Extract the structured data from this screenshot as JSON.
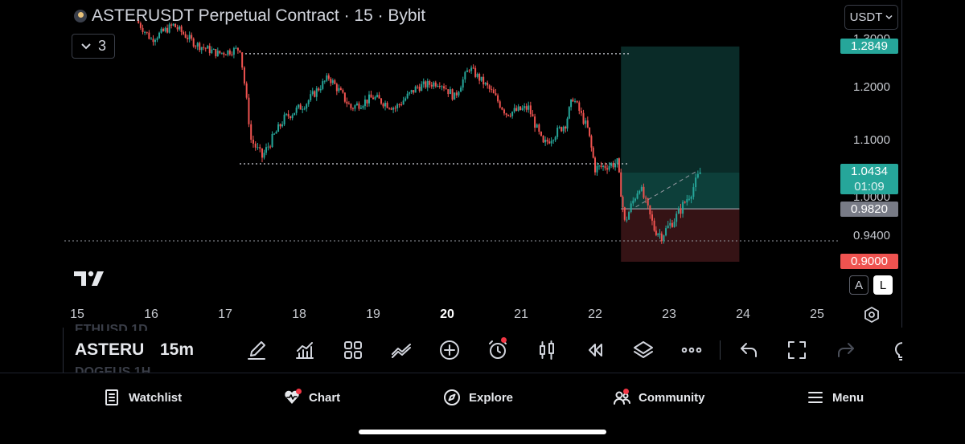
{
  "chart_header": {
    "title": "ASTERUSDT Perpetual Contract · 15 · Bybit",
    "indicator_count": "3",
    "currency": "USDT"
  },
  "colors": {
    "up": "#26a69a",
    "down": "#ef5350",
    "profit_zone": "#0e3a36",
    "loss_zone": "#3b1517",
    "target_tag": "#26a69a",
    "stop_tag": "#ef5350",
    "entry_tag": "#787b86"
  },
  "price_axis": {
    "labels": [
      "1.3000",
      "1.2000",
      "1.1000",
      "1.0000",
      "0.9400"
    ],
    "target_price": "1.2849",
    "current_price": "1.0434",
    "countdown": "01:09",
    "entry_price": "0.9820",
    "stop_price": "0.9000",
    "scale_buttons": [
      "A",
      "L"
    ]
  },
  "time_axis": {
    "labels": [
      "15",
      "16",
      "17",
      "18",
      "19",
      "20",
      "21",
      "22",
      "23",
      "24",
      "25"
    ],
    "bold_label": "20"
  },
  "chart_data": {
    "type": "candlestick",
    "symbol": "ASTERUSDT",
    "interval": "15",
    "exchange": "Bybit",
    "x_ticks": [
      "15",
      "16",
      "17",
      "18",
      "19",
      "20",
      "21",
      "22",
      "23",
      "24",
      "25"
    ],
    "y_ticks": [
      1.3,
      1.2,
      1.1,
      1.0,
      0.94
    ],
    "ylim": [
      0.88,
      1.33
    ],
    "approx_close_path": [
      {
        "x": 15.8,
        "y": 1.34
      },
      {
        "x": 16.0,
        "y": 1.3
      },
      {
        "x": 16.3,
        "y": 1.33
      },
      {
        "x": 16.6,
        "y": 1.29
      },
      {
        "x": 16.9,
        "y": 1.27
      },
      {
        "x": 17.2,
        "y": 1.28
      },
      {
        "x": 17.35,
        "y": 1.1
      },
      {
        "x": 17.5,
        "y": 1.07
      },
      {
        "x": 17.8,
        "y": 1.14
      },
      {
        "x": 18.1,
        "y": 1.17
      },
      {
        "x": 18.4,
        "y": 1.22
      },
      {
        "x": 18.7,
        "y": 1.16
      },
      {
        "x": 19.0,
        "y": 1.18
      },
      {
        "x": 19.3,
        "y": 1.16
      },
      {
        "x": 19.6,
        "y": 1.2
      },
      {
        "x": 19.9,
        "y": 1.21
      },
      {
        "x": 20.1,
        "y": 1.18
      },
      {
        "x": 20.3,
        "y": 1.24
      },
      {
        "x": 20.6,
        "y": 1.19
      },
      {
        "x": 20.8,
        "y": 1.15
      },
      {
        "x": 21.1,
        "y": 1.16
      },
      {
        "x": 21.3,
        "y": 1.09
      },
      {
        "x": 21.6,
        "y": 1.13
      },
      {
        "x": 21.7,
        "y": 1.18
      },
      {
        "x": 21.9,
        "y": 1.12
      },
      {
        "x": 22.0,
        "y": 1.05
      },
      {
        "x": 22.3,
        "y": 1.06
      },
      {
        "x": 22.4,
        "y": 0.96
      },
      {
        "x": 22.6,
        "y": 1.02
      },
      {
        "x": 22.8,
        "y": 0.95
      },
      {
        "x": 22.9,
        "y": 0.94
      },
      {
        "x": 23.1,
        "y": 0.97
      },
      {
        "x": 23.3,
        "y": 1.01
      },
      {
        "x": 23.42,
        "y": 1.0434
      }
    ],
    "horizontal_levels": [
      1.2849,
      1.0434,
      0.94
    ],
    "long_position": {
      "entry": 0.982,
      "target": 1.2849,
      "stop": 0.9,
      "x_start": 22.35,
      "x_end": 23.95
    }
  },
  "toolbar": {
    "symbol": "ASTERU",
    "interval": "15m",
    "ghost_above": "ETHUSD 1D",
    "ghost_below": "DOGEUS 1H",
    "icons": [
      "brush-icon",
      "indicators-icon",
      "templates-icon",
      "compare-icon",
      "add-icon",
      "alert-icon",
      "bar-style-icon",
      "replay-icon",
      "layers-icon",
      "more-icon",
      "undo-icon",
      "fullscreen-icon",
      "redo-icon",
      "lightbulb-icon"
    ]
  },
  "bottom_nav": {
    "watchlist": "Watchlist",
    "chart": "Chart",
    "explore": "Explore",
    "community": "Community",
    "menu": "Menu"
  }
}
